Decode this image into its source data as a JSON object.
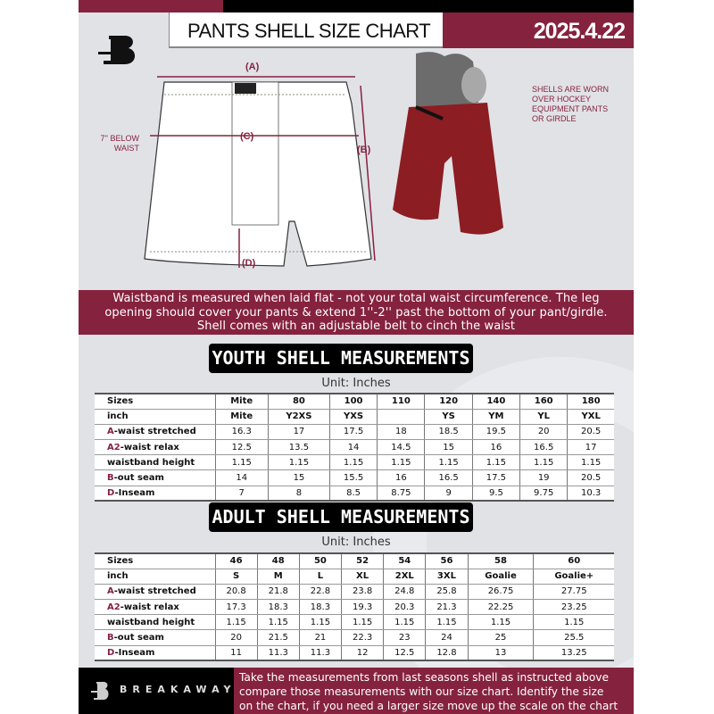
{
  "header": {
    "title": "PANTS SHELL SIZE CHART",
    "date": "2025.4.22"
  },
  "diagram": {
    "label_a": "(A)",
    "label_b": "(B)",
    "label_c": "(C)",
    "label_d": "(D)",
    "below_waist": [
      "7'' BELOW",
      "WAIST"
    ]
  },
  "photo_note": [
    "SHELLS ARE WORN",
    "OVER HOCKEY",
    "EQUIPMENT PANTS",
    "OR GIRDLE"
  ],
  "banner": [
    "Waistband is measured when laid flat - not your total waist circumference. The leg",
    "opening should cover your pants & extend 1''-2'' past the bottom of your pant/girdle.",
    "Shell comes with an adjustable belt to cinch the waist"
  ],
  "youth": {
    "heading": "YOUTH SHELL MEASUREMENTS",
    "unit": "Unit: Inches",
    "rows": [
      {
        "prefix": "",
        "label": "Sizes",
        "values": [
          "Mite",
          "80",
          "100",
          "110",
          "120",
          "140",
          "160",
          "180"
        ]
      },
      {
        "prefix": "",
        "label": "inch",
        "values": [
          "Mite",
          "Y2XS",
          "YXS",
          "",
          "YS",
          "YM",
          "YL",
          "YXL"
        ]
      },
      {
        "prefix": "A",
        "label": "-waist stretched",
        "values": [
          "16.3",
          "17",
          "17.5",
          "18",
          "18.5",
          "19.5",
          "20",
          "20.5"
        ]
      },
      {
        "prefix": "A2",
        "label": "-waist relax",
        "values": [
          "12.5",
          "13.5",
          "14",
          "14.5",
          "15",
          "16",
          "16.5",
          "17"
        ]
      },
      {
        "prefix": "",
        "label": "waistband height",
        "values": [
          "1.15",
          "1.15",
          "1.15",
          "1.15",
          "1.15",
          "1.15",
          "1.15",
          "1.15"
        ]
      },
      {
        "prefix": "B",
        "label": "-out seam",
        "values": [
          "14",
          "15",
          "15.5",
          "16",
          "16.5",
          "17.5",
          "19",
          "20.5"
        ]
      },
      {
        "prefix": "D",
        "label": "-Inseam",
        "values": [
          "7",
          "8",
          "8.5",
          "8.75",
          "9",
          "9.5",
          "9.75",
          "10.3"
        ]
      }
    ]
  },
  "adult": {
    "heading": "ADULT SHELL MEASUREMENTS",
    "unit": "Unit: Inches",
    "rows": [
      {
        "prefix": "",
        "label": "Sizes",
        "values": [
          "46",
          "48",
          "50",
          "52",
          "54",
          "56",
          "58",
          "60"
        ]
      },
      {
        "prefix": "",
        "label": "inch",
        "values": [
          "S",
          "M",
          "L",
          "XL",
          "2XL",
          "3XL",
          "Goalie",
          "Goalie+"
        ]
      },
      {
        "prefix": "A",
        "label": "-waist stretched",
        "values": [
          "20.8",
          "21.8",
          "22.8",
          "23.8",
          "24.8",
          "25.8",
          "26.75",
          "27.75"
        ]
      },
      {
        "prefix": "A2",
        "label": "-waist relax",
        "values": [
          "17.3",
          "18.3",
          "18.3",
          "19.3",
          "20.3",
          "21.3",
          "22.25",
          "23.25"
        ]
      },
      {
        "prefix": "",
        "label": "waistband height",
        "values": [
          "1.15",
          "1.15",
          "1.15",
          "1.15",
          "1.15",
          "1.15",
          "1.15",
          "1.15"
        ]
      },
      {
        "prefix": "B",
        "label": "-out seam",
        "values": [
          "20",
          "21.5",
          "21",
          "22.3",
          "23",
          "24",
          "25",
          "25.5"
        ]
      },
      {
        "prefix": "D",
        "label": "-Inseam",
        "values": [
          "11",
          "11.3",
          "11.3",
          "12",
          "12.5",
          "12.8",
          "13",
          "13.25"
        ]
      }
    ]
  },
  "footer": {
    "brand": "BREAKAWAY",
    "text": [
      "Take the measurements from last seasons shell as instructed above",
      "compare those measurements  with our size chart. Identify the size",
      "on the chart, if you need a larger size move up the scale on the chart"
    ]
  },
  "colors": {
    "accent": "#85223e",
    "background": "#e1e2e6"
  }
}
